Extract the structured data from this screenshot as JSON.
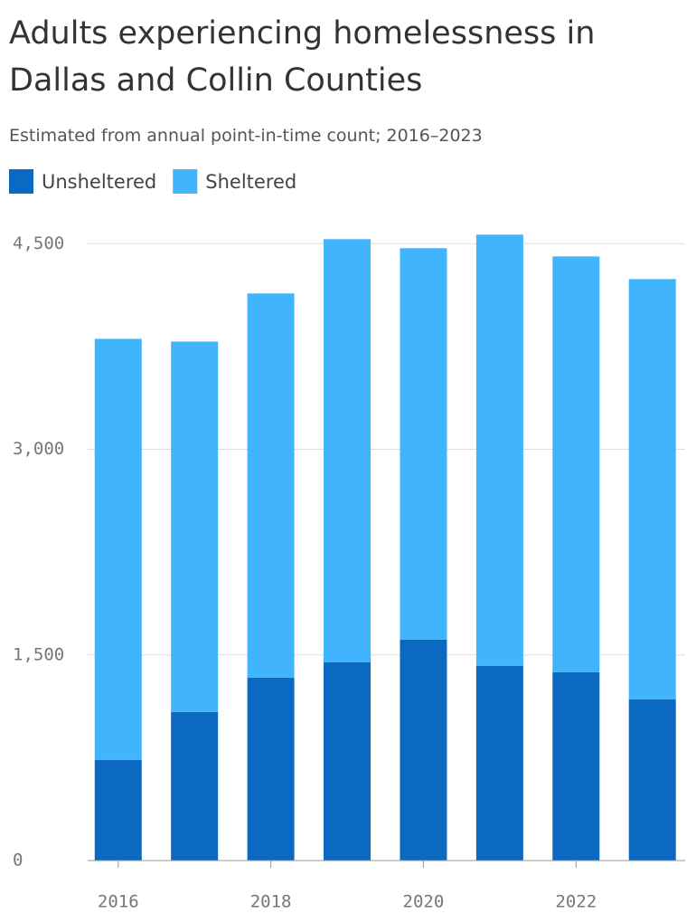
{
  "chart_data": {
    "type": "stacked-bar",
    "title": "Adults experiencing homelessness in Dallas and Collin Counties",
    "subtitle": "Estimated from annual point-in-time count; 2016–2023",
    "x": [
      2016,
      2017,
      2018,
      2019,
      2020,
      2021,
      2022,
      2023
    ],
    "xlim": [
      2015.6,
      2023.43
    ],
    "xticks": [
      2016,
      2018,
      2020,
      2022
    ],
    "series": [
      {
        "name": "Unsheltered",
        "color": "#0b69c1",
        "values": [
          733,
          1084,
          1335,
          1447,
          1612,
          1421,
          1374,
          1176
        ]
      },
      {
        "name": "Sheltered",
        "color": "#40b4fd",
        "values": [
          3073,
          2702,
          2802,
          3086,
          2855,
          3145,
          3033,
          3066
        ]
      }
    ],
    "ylim": [
      0,
      4700
    ],
    "yticks": [
      0,
      {
        "value": 1500,
        "label": "1,500"
      },
      {
        "value": 3000,
        "label": "3,000"
      },
      {
        "value": 4500,
        "label": "4,500"
      }
    ],
    "grid": true
  }
}
